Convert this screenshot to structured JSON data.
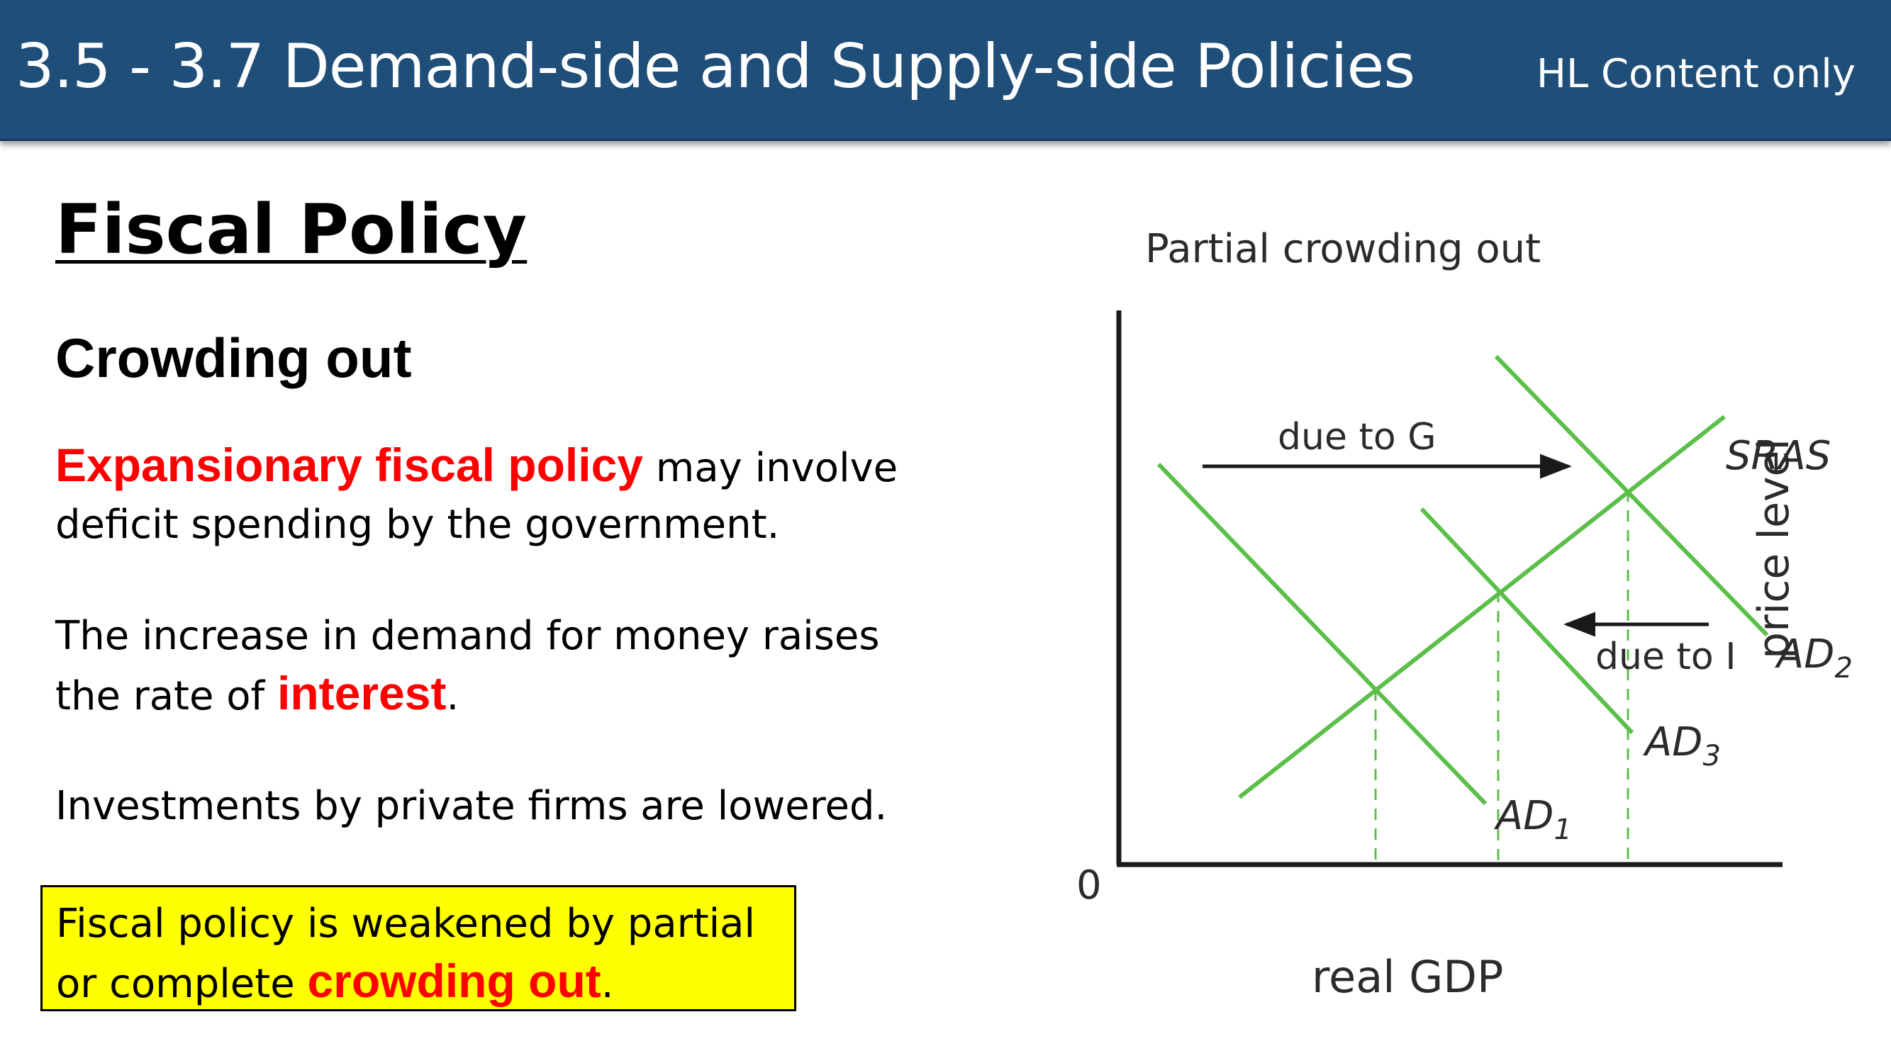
{
  "header": {
    "title": "3.5 - 3.7 Demand-side and Supply-side Policies",
    "note": "HL Content only"
  },
  "main": {
    "heading": "Fiscal Policy",
    "subheading": "Crowding out",
    "p1": {
      "highlight": "Expansionary fiscal policy",
      "rest": " may involve deficit spending by the government."
    },
    "p2": {
      "text": "The increase in demand for money raises the rate of ",
      "highlight": "interest",
      "end": "."
    },
    "p3": {
      "text": "Investments by private firms are lowered."
    },
    "callout": {
      "text": "Fiscal policy is weakened by partial or complete ",
      "highlight": "crowding out",
      "end": "."
    }
  },
  "diagram": {
    "title": "Partial crowding out",
    "y_axis_label": "price level",
    "x_axis_label": "real GDP",
    "origin_label": "0",
    "arrow_g_label": "due to G",
    "arrow_i_label": "due to I",
    "curves": {
      "sras": "SRAS",
      "ad1": {
        "main": "AD",
        "sub": "1"
      },
      "ad2": {
        "main": "AD",
        "sub": "2"
      },
      "ad3": {
        "main": "AD",
        "sub": "3"
      }
    },
    "colors": {
      "curve": "#5cbf4a",
      "guide": "#5cbf4a",
      "axis": "#1a1a1a",
      "arrow": "#1a1a1a"
    }
  }
}
